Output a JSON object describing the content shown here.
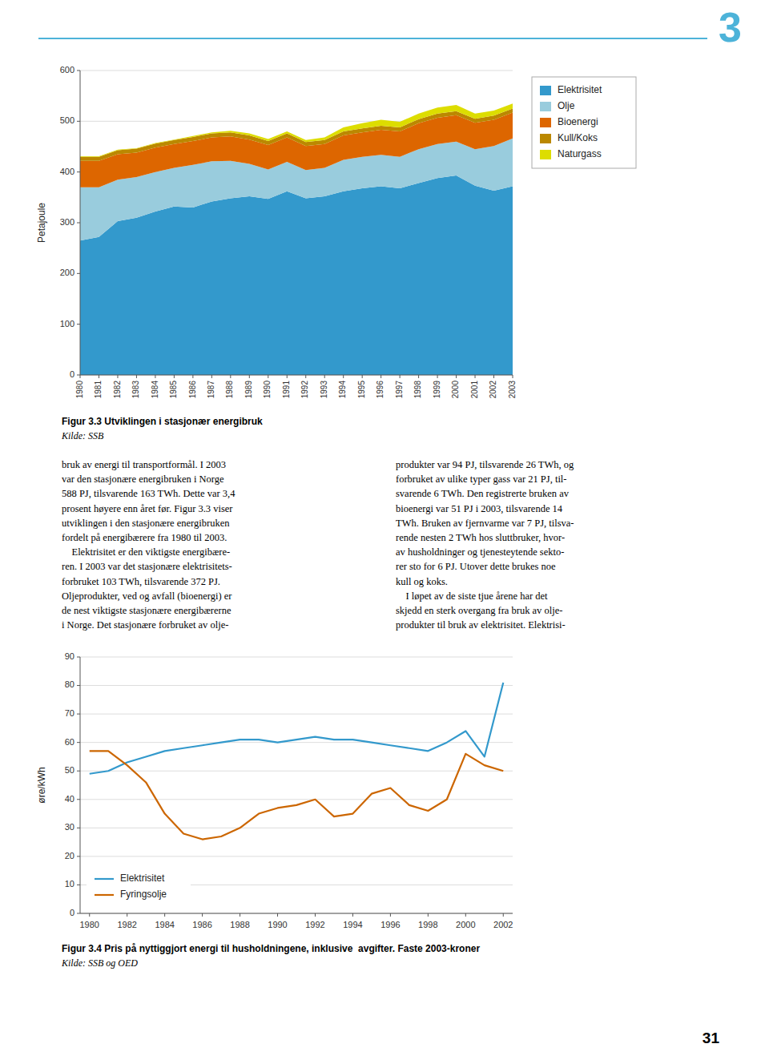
{
  "chapter_number": "3",
  "page_number": "31",
  "header_color": "#4db3d9",
  "body_text": [
    "bruk av energi til transportformål. I 2003\nvar den stasjonære energibruken i Norge\n588 PJ, tilsvarende 163 TWh. Dette var 3,4\nprosent høyere enn året før. Figur 3.3 viser\nutviklingen i den stasjonære energibruken\nfordelt på energibærere fra 1980 til 2003.\n    Elektrisitet er den viktigste energibære-\nren. I 2003 var det stasjonære elektrisitets-\nforbruket 103 TWh, tilsvarende 372 PJ.\nOljeprodukter, ved og avfall (bioenergi) er\nde nest viktigste stasjonære energibærerne\ni Norge. Det stasjonære forbruket av olje-",
    "produkter var 94 PJ, tilsvarende 26 TWh, og\nforbruket av ulike typer gass var 21 PJ, til-\nsvarende 6 TWh. Den registrerte bruken av\nbioenergi var 51 PJ i 2003, tilsvarende 14\nTWh. Bruken av fjernvarme var 7 PJ, tilsva-\nrende nesten 2 TWh hos sluttbruker, hvor-\nav husholdninger og tjenesteytende sekto-\nrer sto for 6 PJ. Utover dette brukes noe\nkull og koks.\n    I løpet av de siste tjue årene har det\nskjedd en sterk overgang fra bruk av olje-\nprodukter til bruk av elektrisitet. Elektrisi-"
  ],
  "chart_data": [
    {
      "type": "area",
      "stacked": true,
      "title": "Figur 3.3 Utviklingen i stasjonær energibruk",
      "subtitle": "Kilde: SSB",
      "y_label": "Petajoule",
      "x": [
        1980,
        1981,
        1982,
        1983,
        1984,
        1985,
        1986,
        1987,
        1988,
        1989,
        1990,
        1991,
        1992,
        1993,
        1994,
        1995,
        1996,
        1997,
        1998,
        1999,
        2000,
        2001,
        2002,
        2003
      ],
      "series": [
        {
          "name": "Elektrisitet",
          "color": "#3399cc",
          "values": [
            265,
            272,
            303,
            310,
            322,
            332,
            330,
            342,
            348,
            352,
            347,
            362,
            348,
            352,
            362,
            368,
            372,
            368,
            378,
            388,
            393,
            373,
            363,
            372
          ]
        },
        {
          "name": "Olje",
          "color": "#99ccdd",
          "values": [
            105,
            98,
            82,
            80,
            78,
            76,
            84,
            79,
            74,
            64,
            58,
            58,
            56,
            56,
            62,
            62,
            62,
            62,
            67,
            67,
            67,
            72,
            88,
            94
          ]
        },
        {
          "name": "Bioenergi",
          "color": "#dd6600",
          "values": [
            52,
            52,
            50,
            48,
            48,
            47,
            47,
            47,
            48,
            48,
            48,
            48,
            47,
            47,
            48,
            48,
            49,
            50,
            51,
            52,
            52,
            52,
            52,
            51
          ]
        },
        {
          "name": "Kull/Koks",
          "color": "#bb8800",
          "values": [
            8,
            8,
            8,
            8,
            8,
            8,
            8,
            8,
            8,
            8,
            8,
            8,
            8,
            8,
            8,
            8,
            8,
            8,
            8,
            8,
            8,
            8,
            8,
            8
          ]
        },
        {
          "name": "Naturgass",
          "color": "#dddd00",
          "values": [
            1,
            1,
            1,
            1,
            1,
            1,
            2,
            2,
            3,
            4,
            4,
            4,
            4,
            5,
            8,
            10,
            12,
            11,
            11,
            12,
            12,
            10,
            10,
            10
          ]
        }
      ],
      "xlim": [
        1980,
        2003
      ],
      "xticks": [
        1980,
        1981,
        1982,
        1983,
        1984,
        1985,
        1986,
        1987,
        1988,
        1989,
        1990,
        1991,
        1992,
        1993,
        1994,
        1995,
        1996,
        1997,
        1998,
        1999,
        2000,
        2001,
        2002,
        2003
      ],
      "ylim": [
        0,
        600
      ],
      "yticks": [
        0,
        100,
        200,
        300,
        400,
        500,
        600
      ],
      "grid": true,
      "legend": "right"
    },
    {
      "type": "line",
      "title": "Figur 3.4 Pris på nyttiggjort energi til husholdningene, inklusive  avgifter. Faste 2003-kroner",
      "subtitle": "Kilde: SSB og OED",
      "y_label": "øre/kWh",
      "x": [
        1980,
        1981,
        1982,
        1983,
        1984,
        1985,
        1986,
        1987,
        1988,
        1989,
        1990,
        1991,
        1992,
        1993,
        1994,
        1995,
        1996,
        1997,
        1998,
        1999,
        2000,
        2001,
        2002
      ],
      "series": [
        {
          "name": "Elektrisitet",
          "color": "#3399cc",
          "values": [
            49,
            50,
            53,
            55,
            57,
            58,
            59,
            60,
            61,
            61,
            60,
            61,
            62,
            61,
            61,
            60,
            59,
            58,
            57,
            60,
            64,
            55,
            81
          ]
        },
        {
          "name": "Fyringsolje",
          "color": "#cc6600",
          "values": [
            57,
            57,
            52,
            46,
            35,
            28,
            26,
            27,
            30,
            35,
            37,
            38,
            40,
            34,
            35,
            42,
            44,
            38,
            36,
            40,
            56,
            52,
            50
          ]
        }
      ],
      "xlim": [
        1979.5,
        2002.5
      ],
      "xticks": [
        1980,
        1982,
        1984,
        1986,
        1988,
        1990,
        1992,
        1994,
        1996,
        1998,
        2000,
        2002
      ],
      "ylim": [
        0,
        90
      ],
      "yticks": [
        0,
        10,
        20,
        30,
        40,
        50,
        60,
        70,
        80,
        90
      ],
      "grid": true,
      "legend": "lower left"
    }
  ]
}
